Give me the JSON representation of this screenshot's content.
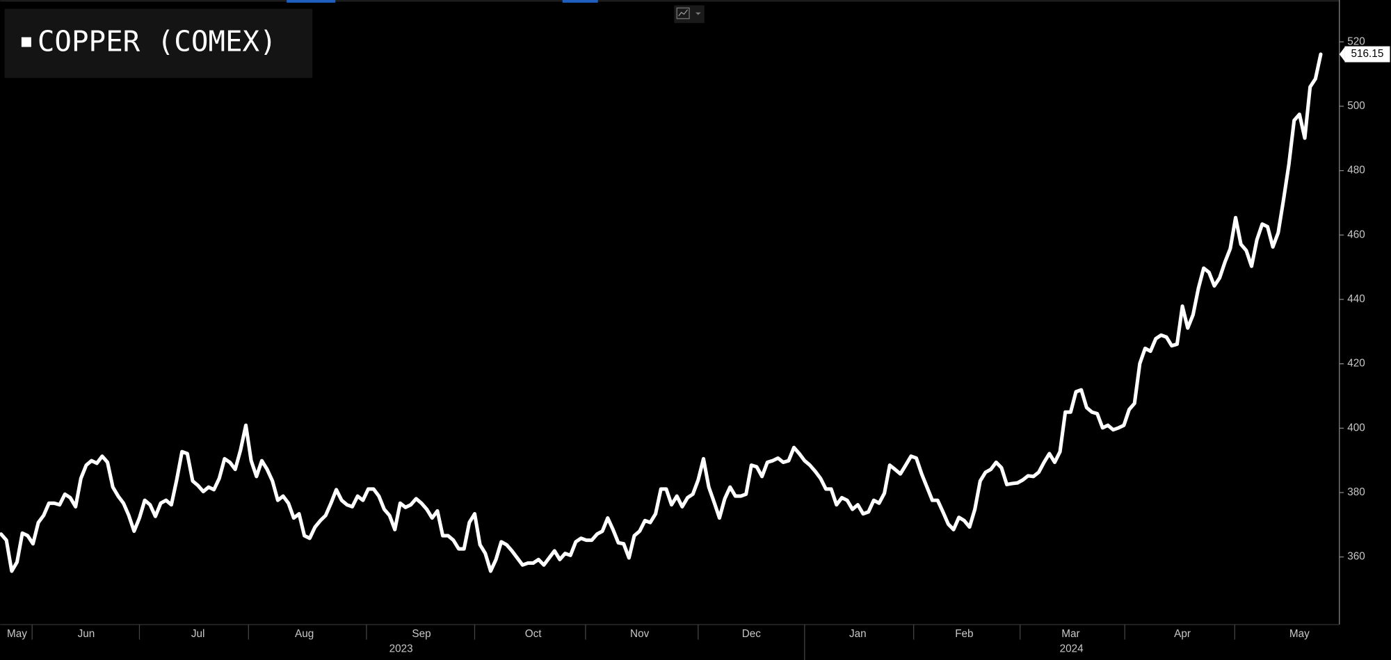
{
  "chart_data": {
    "type": "line",
    "categories": [
      null,
      null,
      null,
      "May",
      null,
      null,
      null,
      null,
      null,
      null,
      null,
      null,
      null,
      null,
      null,
      null,
      "Jun",
      null,
      null,
      null,
      null,
      null,
      null,
      null,
      null,
      null,
      null,
      null,
      null,
      null,
      null,
      null,
      null,
      null,
      null,
      null,
      null,
      "Jul",
      null,
      null,
      null,
      null,
      null,
      null,
      null,
      null,
      null,
      null,
      null,
      null,
      null,
      null,
      null,
      null,
      null,
      null,
      null,
      "Aug",
      null,
      null,
      null,
      null,
      null,
      null,
      null,
      null,
      null,
      null,
      null,
      null,
      null,
      null,
      null,
      null,
      null,
      null,
      null,
      null,
      null,
      "Sep",
      null,
      null,
      null,
      null,
      null,
      null,
      null,
      null,
      null,
      null,
      null,
      null,
      null,
      null,
      null,
      null,
      null,
      null,
      null,
      null,
      "Oct",
      null,
      null,
      null,
      null,
      null,
      null,
      null,
      null,
      null,
      null,
      null,
      null,
      null,
      null,
      null,
      null,
      null,
      null,
      null,
      "Nov",
      null,
      null,
      null,
      null,
      null,
      null,
      null,
      null,
      null,
      null,
      null,
      null,
      null,
      null,
      null,
      null,
      null,
      null,
      null,
      null,
      "Dec",
      null,
      null,
      null,
      null,
      null,
      null,
      null,
      null,
      null,
      null,
      null,
      null,
      null,
      null,
      null,
      null,
      null,
      null,
      null,
      "Jan",
      null,
      null,
      null,
      null,
      null,
      null,
      null,
      null,
      null,
      null,
      null,
      null,
      null,
      null,
      null,
      null,
      null,
      null,
      null,
      "Feb",
      null,
      null,
      null,
      null,
      null,
      null,
      null,
      null,
      null,
      null,
      null,
      null,
      null,
      null,
      null,
      null,
      null,
      null,
      null,
      "Mar",
      null,
      null,
      null,
      null,
      null,
      null,
      null,
      null,
      null,
      null,
      null,
      null,
      null,
      null,
      null,
      null,
      null,
      null,
      null,
      null,
      "Apr",
      null,
      null,
      null,
      null,
      null,
      null,
      null,
      null,
      null,
      null,
      null,
      null,
      null,
      null,
      null,
      null,
      null,
      null,
      null,
      null,
      null,
      "May",
      null,
      null,
      null,
      null
    ],
    "year_labels": [
      "2023",
      "2024"
    ],
    "series": [
      {
        "name": "COPPER (COMEX)",
        "color": "#ffffff",
        "values": [
          367.1,
          365.2,
          355.6,
          358.4,
          367.4,
          366.6,
          364.1,
          370.7,
          372.9,
          376.7,
          376.7,
          376.2,
          379.5,
          378.4,
          375.6,
          384.4,
          388.5,
          389.9,
          389.1,
          391.3,
          389.4,
          381.7,
          378.9,
          376.7,
          372.9,
          368.0,
          372.1,
          377.6,
          376.2,
          372.6,
          376.7,
          377.6,
          376.2,
          383.9,
          392.7,
          392.1,
          383.6,
          382.2,
          380.3,
          381.7,
          380.9,
          384.4,
          390.5,
          389.4,
          387.2,
          393.2,
          400.9,
          389.9,
          385.0,
          389.9,
          387.2,
          383.6,
          377.6,
          378.9,
          376.7,
          372.1,
          373.4,
          366.6,
          365.8,
          369.3,
          371.3,
          372.9,
          376.7,
          380.9,
          377.6,
          376.2,
          375.6,
          378.9,
          377.6,
          381.1,
          381.1,
          378.9,
          374.8,
          372.9,
          368.5,
          376.7,
          375.4,
          376.2,
          378.1,
          376.7,
          374.8,
          372.1,
          374.3,
          366.6,
          366.6,
          365.2,
          362.5,
          362.5,
          370.7,
          373.4,
          363.8,
          361.1,
          355.6,
          359.2,
          364.7,
          363.8,
          361.9,
          359.7,
          357.5,
          358.1,
          358.1,
          359.2,
          357.5,
          359.7,
          361.9,
          359.2,
          361.1,
          360.5,
          364.7,
          365.8,
          365.2,
          365.2,
          367.1,
          368.0,
          372.1,
          368.5,
          364.4,
          364.1,
          359.7,
          366.6,
          368.0,
          371.3,
          370.7,
          373.4,
          381.1,
          381.1,
          376.2,
          378.9,
          375.6,
          378.4,
          379.5,
          383.9,
          390.5,
          381.7,
          377.0,
          372.1,
          378.1,
          381.7,
          378.9,
          378.9,
          379.5,
          388.5,
          388.0,
          385.0,
          389.4,
          389.9,
          390.7,
          389.4,
          389.9,
          394.0,
          392.1,
          389.9,
          388.5,
          386.6,
          384.4,
          381.1,
          381.1,
          376.2,
          378.4,
          377.6,
          374.8,
          376.2,
          373.4,
          374.0,
          377.6,
          376.7,
          379.8,
          388.5,
          387.2,
          385.8,
          388.5,
          391.3,
          390.7,
          385.8,
          381.7,
          377.6,
          377.6,
          374.0,
          370.2,
          368.5,
          372.3,
          371.3,
          369.3,
          374.8,
          383.6,
          386.3,
          387.2,
          389.4,
          387.7,
          382.5,
          382.8,
          383.0,
          383.9,
          385.2,
          385.0,
          386.3,
          389.4,
          392.1,
          389.4,
          392.7,
          405.0,
          405.0,
          411.3,
          411.9,
          406.4,
          405.0,
          404.5,
          400.1,
          400.9,
          399.5,
          400.1,
          400.9,
          405.8,
          407.7,
          420.1,
          424.8,
          423.9,
          427.8,
          428.9,
          428.3,
          425.6,
          426.1,
          437.9,
          431.1,
          435.2,
          443.4,
          449.7,
          448.4,
          444.2,
          446.7,
          451.6,
          455.8,
          465.4,
          457.1,
          455.2,
          450.3,
          458.5,
          463.4,
          462.6,
          456.3,
          460.7,
          470.9,
          481.8,
          495.6,
          497.5,
          490.1,
          506.0,
          508.5,
          516.15
        ]
      }
    ],
    "ylim": [
      339,
      533
    ],
    "yticks": [
      360,
      380,
      400,
      420,
      440,
      460,
      480,
      500,
      520
    ],
    "grid": false,
    "legend": "top-left"
  }
}
